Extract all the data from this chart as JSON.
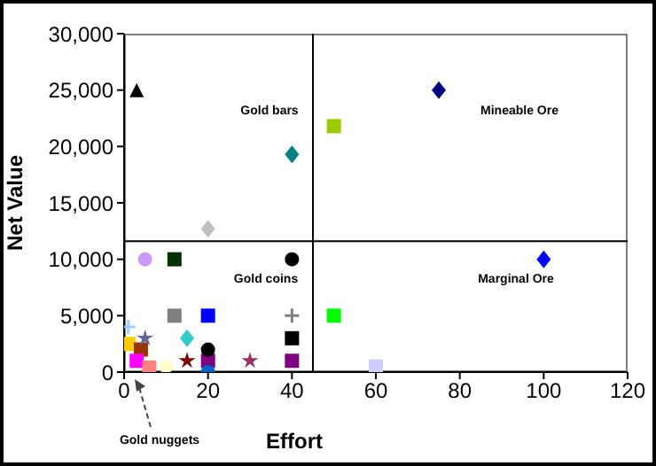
{
  "chart_data": {
    "type": "scatter",
    "xlabel": "Effort",
    "ylabel": "Net Value",
    "xlim": [
      0,
      120
    ],
    "xticks": [
      0,
      20,
      40,
      60,
      80,
      100,
      120
    ],
    "ylim": [
      0,
      30000
    ],
    "yticks": [
      {
        "value": 0,
        "label": "0"
      },
      {
        "value": 5000,
        "label": "5,000"
      },
      {
        "value": 10000,
        "label": "10,000"
      },
      {
        "value": 15000,
        "label": "15,000"
      },
      {
        "value": 20000,
        "label": "20,000"
      },
      {
        "value": 25000,
        "label": "25,000"
      },
      {
        "value": 30000,
        "label": "30,000"
      }
    ],
    "grid": false,
    "legend": false,
    "ref_lines": [
      {
        "axis": "x",
        "value": 45,
        "color": "#000000"
      },
      {
        "axis": "y",
        "value": 11600,
        "color": "#000000"
      }
    ],
    "annotations": [
      "Gold bars",
      "Mineable Ore",
      "Gold coins",
      "Marginal Ore",
      "Gold nuggets"
    ],
    "series": [
      {
        "marker": "triangle",
        "x": [
          3
        ],
        "values": [
          25000
        ],
        "colors": [
          "#000000"
        ]
      },
      {
        "marker": "diamond",
        "x": [
          40,
          75,
          20,
          100,
          15
        ],
        "values": [
          19300,
          25000,
          12700,
          10000,
          3000
        ],
        "colors": [
          "#008080",
          "#000080",
          "#c0c0c0",
          "#0000ff",
          "#33cccc"
        ]
      },
      {
        "marker": "square",
        "x": [
          50,
          12,
          40,
          60,
          1,
          4,
          3,
          6,
          12,
          20,
          50,
          20,
          40
        ],
        "values": [
          21800,
          5000,
          3000,
          500,
          2500,
          2000,
          1000,
          400,
          10000,
          5000,
          5000,
          1000,
          1000
        ],
        "colors": [
          "#99cc00",
          "#808080",
          "#000000",
          "#ccccff",
          "#ffcc00",
          "#993300",
          "#ff00ff",
          "#ff8080",
          "#003300",
          "#0000ff",
          "#00ff00",
          "#800080",
          "#800080"
        ]
      },
      {
        "marker": "circle",
        "x": [
          40,
          5,
          20,
          20,
          10
        ],
        "values": [
          10000,
          10000,
          2000,
          0,
          500
        ],
        "colors": [
          "#000000",
          "#cc99ff",
          "#000000",
          "#0066cc",
          "#ffffcc"
        ]
      },
      {
        "marker": "star",
        "x": [
          15,
          30,
          5
        ],
        "values": [
          1000,
          1000,
          3000
        ],
        "colors": [
          "#800000",
          "#993366",
          "#666699"
        ]
      },
      {
        "marker": "cross",
        "x": [
          40,
          1
        ],
        "values": [
          5000,
          4000
        ],
        "colors": [
          "#808080",
          "#99ccff"
        ]
      }
    ]
  }
}
